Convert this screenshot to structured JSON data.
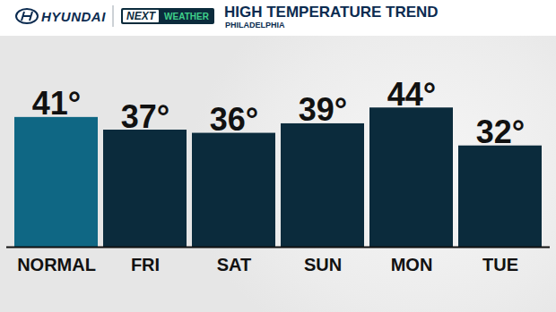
{
  "chart_data": {
    "type": "bar",
    "title": "HIGH TEMPERATURE TREND",
    "subtitle": "PHILADELPHIA",
    "annotations": [
      "HYUNDAI",
      "NEXT",
      "WEATHER"
    ],
    "categories": [
      "NORMAL",
      "FRI",
      "SAT",
      "SUN",
      "MON",
      "TUE"
    ],
    "values": [
      41,
      37,
      36,
      39,
      44,
      32
    ],
    "value_labels": [
      "41°",
      "37°",
      "36°",
      "39°",
      "44°",
      "32°"
    ],
    "colors": [
      "#0f6784",
      "#0b2b3c",
      "#0b2b3c",
      "#0b2b3c",
      "#0b2b3c",
      "#0b2b3c"
    ],
    "ylim": [
      0,
      50
    ],
    "grid": false,
    "data_labels": true,
    "tick_labels": "x"
  }
}
